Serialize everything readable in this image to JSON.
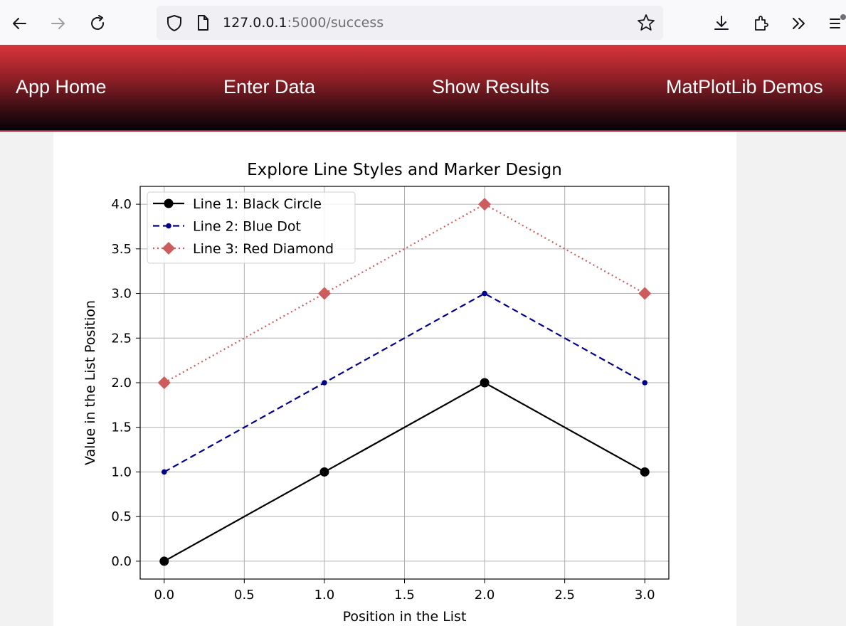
{
  "browser": {
    "url_host": "127.0.0.1",
    "url_path": ":5000/success",
    "icons": [
      "back-arrow-icon",
      "forward-arrow-icon",
      "reload-icon",
      "shield-icon",
      "page-icon",
      "star-icon",
      "download-icon",
      "extensions-icon",
      "overflow-chevron-icon",
      "menu-icon"
    ]
  },
  "nav": {
    "home": "App Home",
    "enter": "Enter Data",
    "results": "Show Results",
    "demos": "MatPlotLib Demos"
  },
  "chart_data": {
    "type": "line",
    "title": "Explore Line Styles and Marker Design",
    "xlabel": "Position in the List",
    "ylabel": "Value in the List Position",
    "x": [
      0,
      1,
      2,
      3
    ],
    "xlim": [
      -0.15,
      3.15
    ],
    "ylim": [
      -0.2,
      4.2
    ],
    "xticks": [
      "0.0",
      "0.5",
      "1.0",
      "1.5",
      "2.0",
      "2.5",
      "3.0"
    ],
    "yticks": [
      "0.0",
      "0.5",
      "1.0",
      "1.5",
      "2.0",
      "2.5",
      "3.0",
      "3.5",
      "4.0"
    ],
    "grid": true,
    "legend_position": "top-left",
    "series": [
      {
        "name": "Line 1: Black Circle",
        "values": [
          0,
          1,
          2,
          1
        ],
        "color": "#000000",
        "linestyle": "solid",
        "marker": "circle"
      },
      {
        "name": "Line 2: Blue Dot",
        "values": [
          1,
          2,
          3,
          2
        ],
        "color": "#00008b",
        "linestyle": "dashed",
        "marker": "dot"
      },
      {
        "name": "Line 3: Red Diamond",
        "values": [
          2,
          3,
          4,
          3
        ],
        "color": "#cd5c5c",
        "linestyle": "dotted",
        "marker": "diamond"
      }
    ]
  }
}
